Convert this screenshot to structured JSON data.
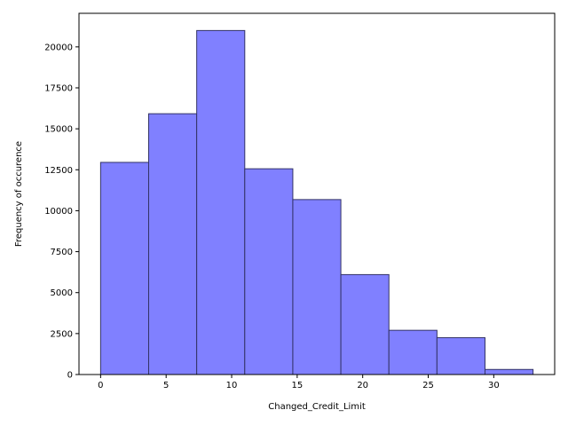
{
  "chart_data": {
    "type": "bar",
    "subtype": "histogram",
    "title": "",
    "xlabel": "Changed_Credit_Limit",
    "ylabel": "Frequency of occurence",
    "bin_edges": [
      0,
      3.667,
      7.333,
      11.0,
      14.667,
      18.333,
      22.0,
      25.667,
      29.333,
      33.0
    ],
    "values": [
      12950,
      15920,
      21000,
      12560,
      10680,
      6100,
      2700,
      2250,
      310
    ],
    "xlim": [
      -1.65,
      34.65
    ],
    "ylim": [
      0,
      22050
    ],
    "xticks": [
      0,
      5,
      10,
      15,
      20,
      25,
      30
    ],
    "xtick_labels": [
      "0",
      "5",
      "10",
      "15",
      "20",
      "25",
      "30"
    ],
    "yticks": [
      0,
      2500,
      5000,
      7500,
      10000,
      12500,
      15000,
      17500,
      20000
    ],
    "ytick_labels": [
      "0",
      "2500",
      "5000",
      "7500",
      "10000",
      "12500",
      "15000",
      "17500",
      "20000"
    ],
    "bar_color": "#8080ff",
    "edge_color": "#333366",
    "grid": false,
    "legend": "none"
  }
}
